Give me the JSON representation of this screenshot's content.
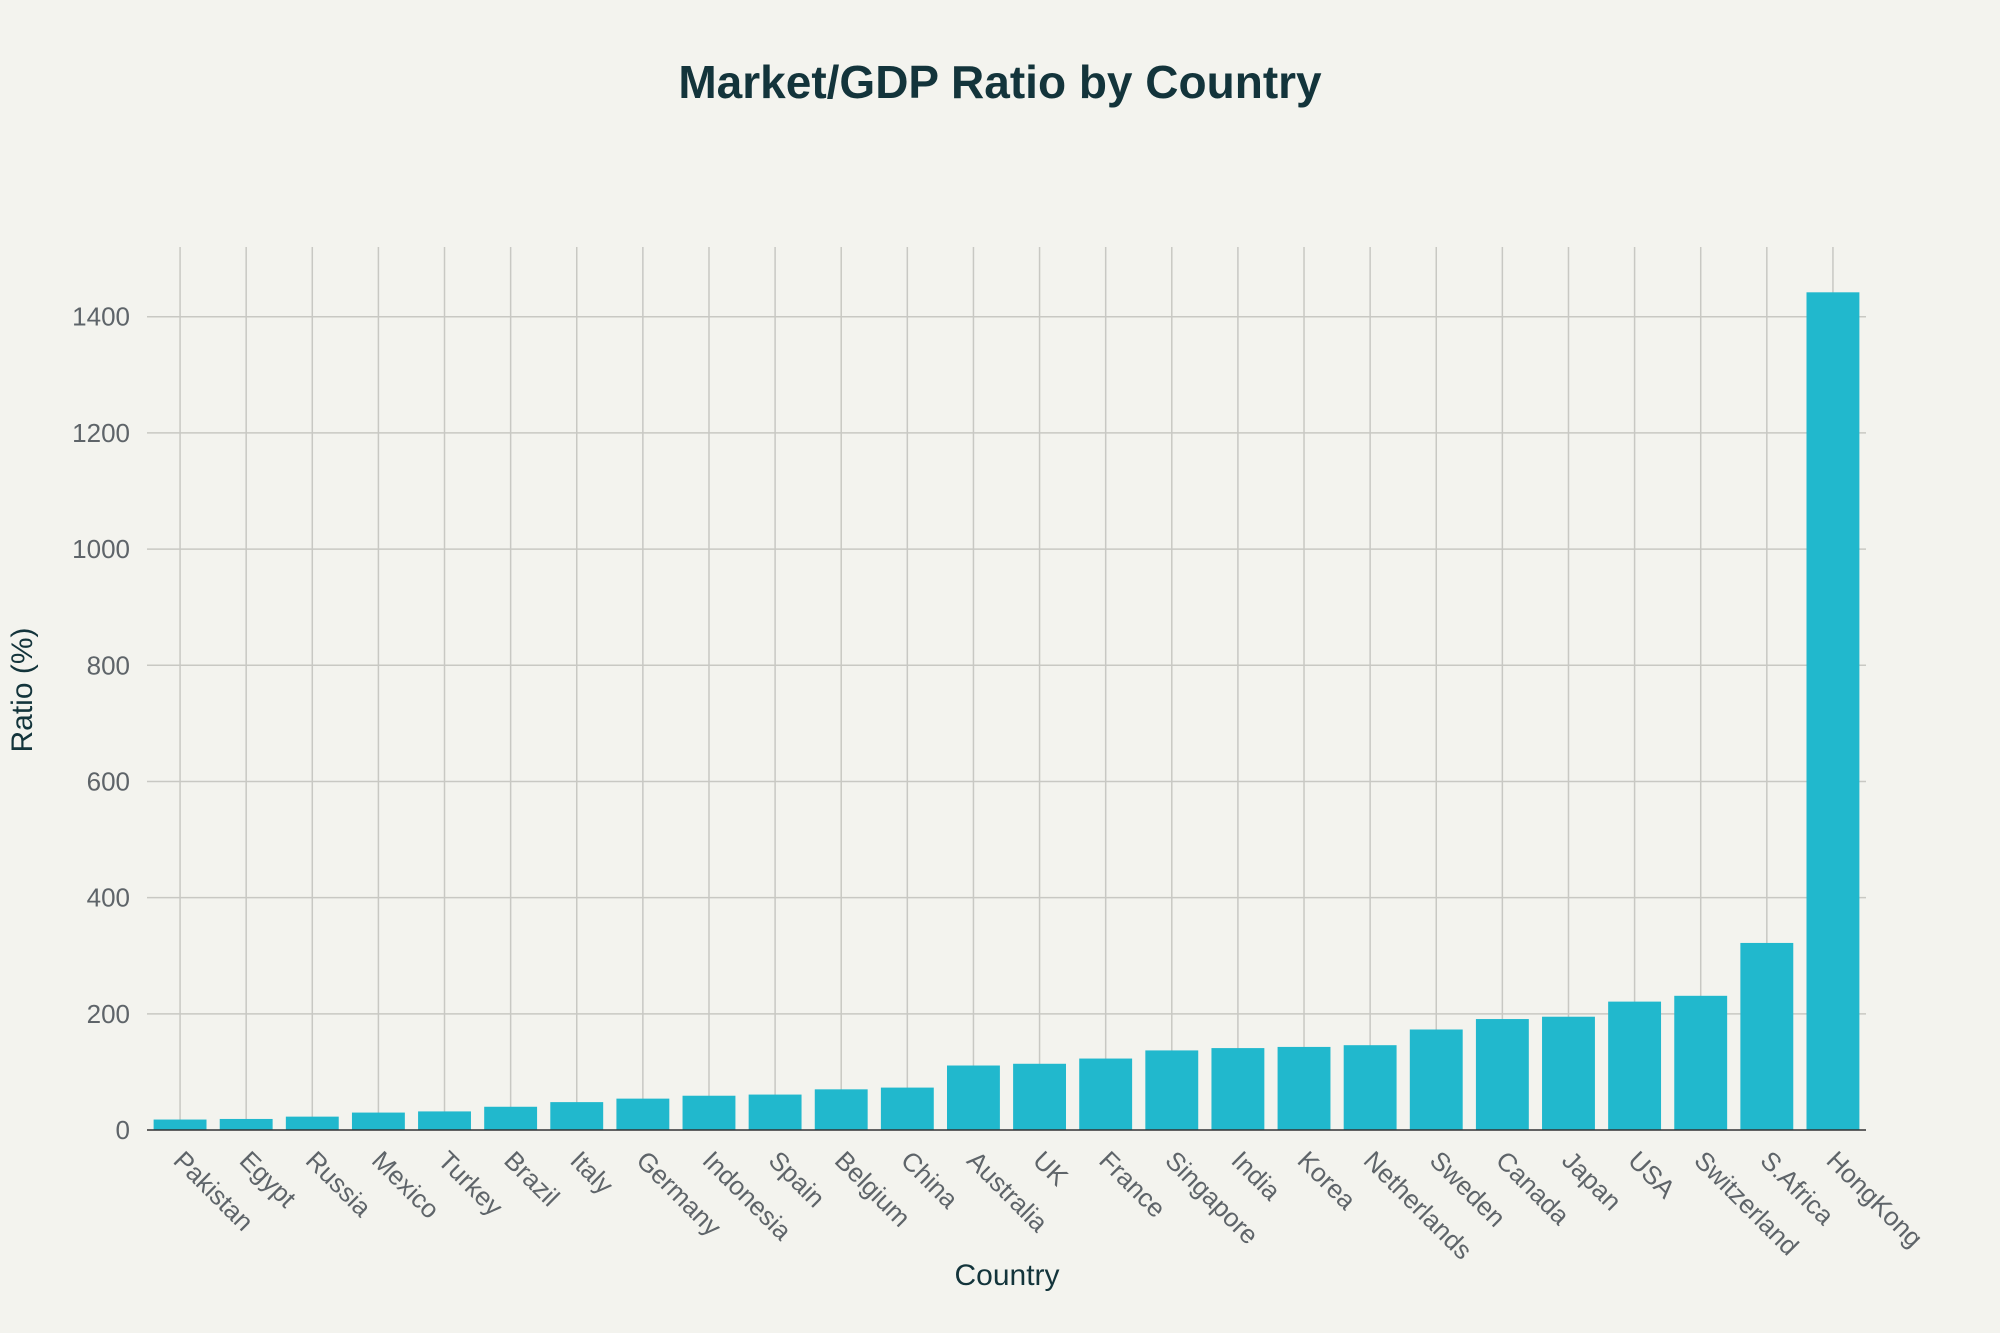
{
  "chart_data": {
    "type": "bar",
    "title": "Market/GDP Ratio by Country",
    "xlabel": "Country",
    "ylabel": "Ratio (%)",
    "categories": [
      "Pakistan",
      "Egypt",
      "Russia",
      "Mexico",
      "Turkey",
      "Brazil",
      "Italy",
      "Germany",
      "Indonesia",
      "Spain",
      "Belgium",
      "China",
      "Australia",
      "UK",
      "France",
      "Singapore",
      "India",
      "Korea",
      "Netherlands",
      "Sweden",
      "Canada",
      "Japan",
      "USA",
      "Switzerland",
      "S.Africa",
      "HongKong"
    ],
    "values": [
      18,
      19,
      23,
      30,
      32,
      40,
      48,
      54,
      59,
      61,
      70,
      73,
      111,
      114,
      123,
      137,
      141,
      143,
      146,
      173,
      191,
      195,
      221,
      231,
      322,
      1442
    ],
    "ylim": [
      0,
      1520
    ],
    "yticks": [
      0,
      200,
      400,
      600,
      800,
      1000,
      1200,
      1400
    ],
    "grid": true,
    "legend": "none",
    "colors": {
      "bar": "#21b8cd",
      "background": "#f3f3ee",
      "title": "#13343b",
      "tick": "#5e6469",
      "grid": "#c8c8c3"
    }
  }
}
